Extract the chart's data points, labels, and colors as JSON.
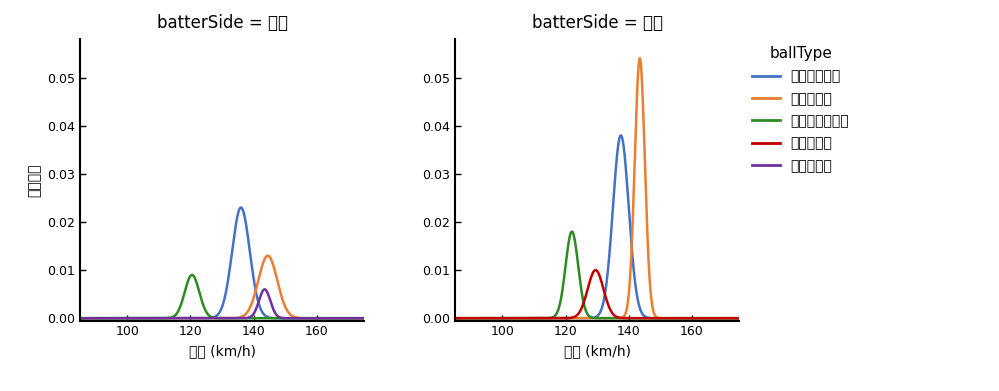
{
  "title_left": "batterSide = 左打",
  "title_right": "batterSide = 右打",
  "ylabel": "確率密度",
  "xlabel": "球速 (km/h)",
  "legend_title": "ballType",
  "legend_labels": [
    "カットボール",
    "ストレート",
    "ナックルカーブ",
    "スプリット",
    "ツーシーム"
  ],
  "colors": [
    "#4472C4",
    "#ED7D31",
    "#2E8B22",
    "#C00000",
    "#7030A0"
  ],
  "xlim": [
    85,
    175
  ],
  "ylim": [
    -0.0005,
    0.058
  ],
  "xticks": [
    100,
    120,
    140,
    160
  ],
  "yticks": [
    0.0,
    0.01,
    0.02,
    0.03,
    0.04,
    0.05
  ],
  "left": {
    "カットボール": {
      "mean": 136.0,
      "std": 2.8,
      "scale": 0.023
    },
    "ストレート": {
      "mean": 144.5,
      "std": 3.0,
      "scale": 0.013
    },
    "ナックルカーブ": {
      "mean": 120.5,
      "std": 2.3,
      "scale": 0.009
    },
    "スプリット": {
      "mean": 0,
      "std": 0,
      "scale": 0
    },
    "ツーシーム": {
      "mean": 143.5,
      "std": 1.8,
      "scale": 0.006
    }
  },
  "right": {
    "カットボール": {
      "mean": 137.5,
      "std": 2.5,
      "scale": 0.038
    },
    "ストレート": {
      "mean": 143.5,
      "std": 1.6,
      "scale": 0.054
    },
    "ナックルカーブ": {
      "mean": 122.0,
      "std": 2.0,
      "scale": 0.018
    },
    "スプリット": {
      "mean": 129.5,
      "std": 2.5,
      "scale": 0.01
    },
    "ツーシーム": {
      "mean": 0,
      "std": 0,
      "scale": 0
    }
  },
  "background_color": "#FFFFFF",
  "fig_width": 9.99,
  "fig_height": 3.91
}
